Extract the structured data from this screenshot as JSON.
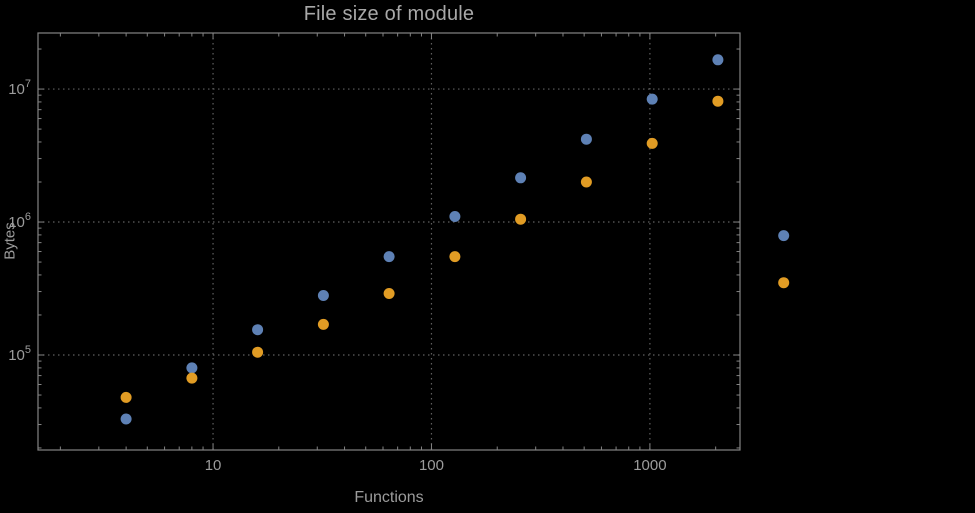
{
  "window": {
    "background": "#000000"
  },
  "chart_data": {
    "type": "scatter",
    "title": "File size of module",
    "xlabel": "Functions",
    "ylabel": "Bytes",
    "x_scale": "log",
    "y_scale": "log",
    "xlim": [
      1.58,
      2585
    ],
    "ylim": [
      19300,
      26400000
    ],
    "grid": "dotted-major",
    "legend": "none",
    "x": [
      4,
      8,
      16,
      32,
      64,
      128,
      256,
      512,
      1024,
      2048,
      4096
    ],
    "series": [
      {
        "name": "series-blue",
        "color": "#5e81b5",
        "values": [
          33000,
          80000,
          155000,
          280000,
          550000,
          1100000,
          2150000,
          4200000,
          8400000,
          16600000,
          790000
        ]
      },
      {
        "name": "series-orange",
        "color": "#e19c24",
        "values": [
          48000,
          67000,
          105000,
          170000,
          290000,
          550000,
          1050000,
          2000000,
          3900000,
          8100000,
          350000
        ]
      }
    ],
    "x_ticks": [
      {
        "value": 10,
        "label": "10"
      },
      {
        "value": 100,
        "label": "100"
      },
      {
        "value": 1000,
        "label": "1000"
      }
    ],
    "y_ticks": [
      {
        "value": 100000,
        "base": "10",
        "exp": "5"
      },
      {
        "value": 1000000,
        "base": "10",
        "exp": "6"
      },
      {
        "value": 10000000,
        "base": "10",
        "exp": "7"
      }
    ],
    "colors": {
      "background": "#000000",
      "frame": "#848484",
      "grid": "#606060",
      "text": "#9c9c9c",
      "title": "#a8a8a8"
    },
    "point_radius": 5.5
  }
}
